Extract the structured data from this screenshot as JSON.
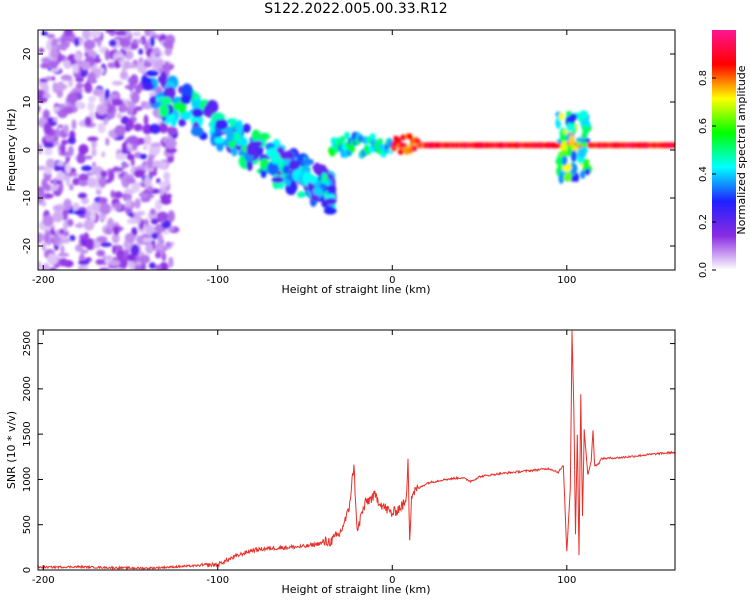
{
  "title": "S122.2022.005.00.33.R12",
  "chart_data": [
    {
      "type": "heatmap",
      "xlabel": "Height of straight line (km)",
      "ylabel": "Frequency (Hz)",
      "xlim": [
        -203,
        162
      ],
      "ylim": [
        -25,
        25
      ],
      "xticks": [
        -200,
        -100,
        0,
        100
      ],
      "yticks": [
        -20,
        -10,
        0,
        10,
        20
      ],
      "colorbar": {
        "label": "Normalized spectral amplitude",
        "range": [
          0.0,
          1.0
        ],
        "ticks": [
          "0.0",
          "0.2",
          "0.4",
          "0.6",
          "0.8"
        ],
        "colormap": [
          "#ffffff",
          "#8a2be2",
          "#2020ff",
          "#00ffff",
          "#00ff00",
          "#ffff00",
          "#ff0000",
          "#ff1493"
        ]
      },
      "features": [
        {
          "name": "diffuse scatter",
          "x_range": [
            -203,
            -125
          ],
          "y_range": [
            -25,
            25
          ],
          "amplitude": 0.1
        },
        {
          "name": "descending trend",
          "x": [
            -140,
            -100,
            -70,
            -50,
            -35
          ],
          "y": [
            13,
            5,
            -2,
            -6,
            -9
          ],
          "amplitude": 0.3
        },
        {
          "name": "steady line",
          "x_range": [
            -35,
            162
          ],
          "y": 1,
          "amplitude": 0.9
        },
        {
          "name": "disturbance",
          "x_range": [
            95,
            112
          ],
          "y_range": [
            -6,
            8
          ],
          "amplitude": 0.5
        }
      ],
      "grid": false
    },
    {
      "type": "line",
      "xlabel": "Height of straight line (km)",
      "ylabel": "SNR (10 * v/v)",
      "xlim": [
        -203,
        162
      ],
      "ylim": [
        0,
        2650
      ],
      "xticks": [
        -200,
        -100,
        0,
        100
      ],
      "yticks": [
        0,
        500,
        1000,
        1500,
        2000,
        2500
      ],
      "color": "#e8302a",
      "x": [
        -203,
        -180,
        -160,
        -140,
        -120,
        -100,
        -90,
        -80,
        -70,
        -60,
        -50,
        -45,
        -40,
        -35,
        -30,
        -25,
        -22,
        -20,
        -18,
        -15,
        -10,
        -5,
        0,
        5,
        8,
        9,
        10,
        11,
        12,
        15,
        20,
        30,
        40,
        45,
        50,
        60,
        70,
        80,
        90,
        95,
        98,
        100,
        102,
        103,
        104,
        105,
        106,
        107,
        108,
        109,
        110,
        112,
        114,
        115,
        116,
        118,
        120,
        130,
        140,
        150,
        162
      ],
      "values": [
        30,
        35,
        25,
        20,
        40,
        60,
        150,
        220,
        240,
        250,
        260,
        280,
        300,
        320,
        400,
        650,
        1150,
        400,
        600,
        750,
        820,
        700,
        620,
        700,
        750,
        1250,
        350,
        800,
        860,
        900,
        960,
        1000,
        1020,
        980,
        1030,
        1060,
        1080,
        1100,
        1120,
        1080,
        1150,
        200,
        900,
        2650,
        1800,
        400,
        1500,
        170,
        1950,
        600,
        1550,
        1050,
        1200,
        1550,
        1150,
        1170,
        1230,
        1240,
        1260,
        1280,
        1300
      ],
      "grid": false
    }
  ]
}
